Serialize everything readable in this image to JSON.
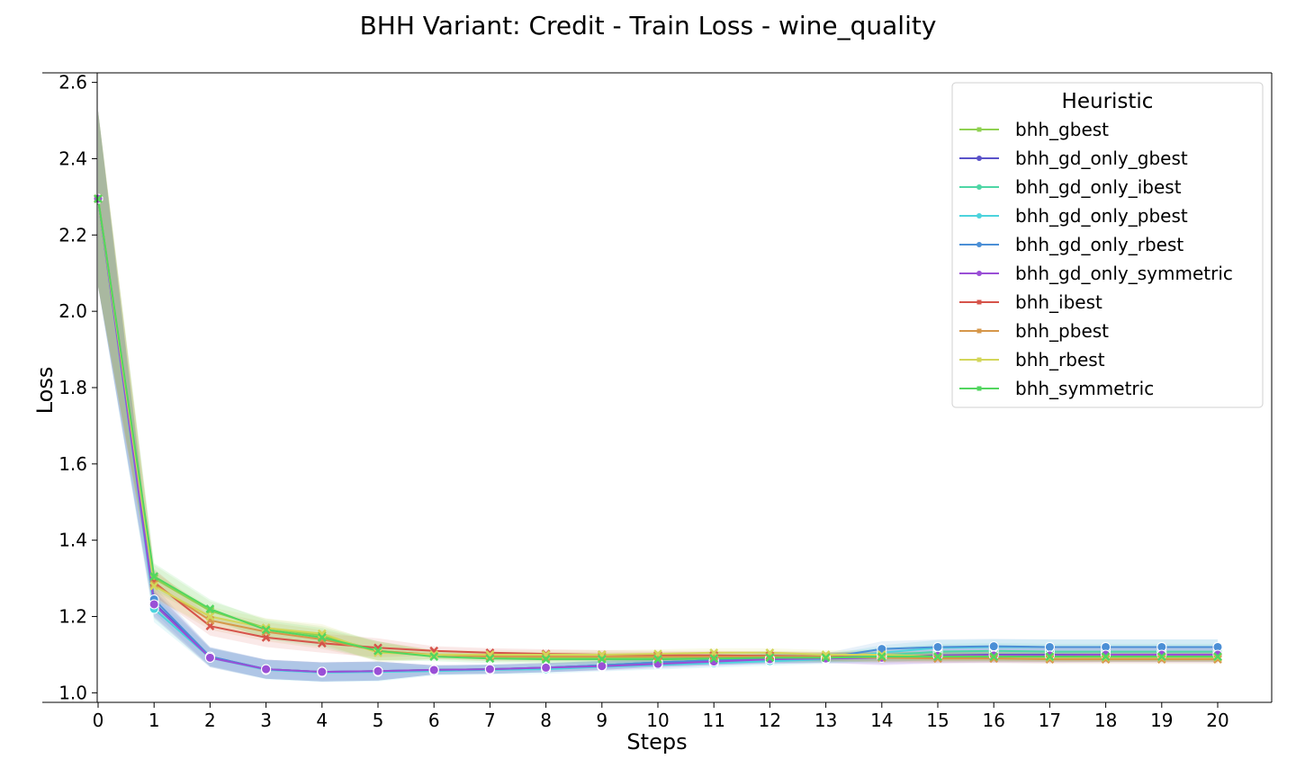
{
  "chart_data": {
    "type": "line",
    "title": "BHH Variant: Credit - Train Loss - wine_quality",
    "xlabel": "Steps",
    "ylabel": "Loss",
    "xlim": [
      0,
      21
    ],
    "ylim": [
      0.975,
      2.625
    ],
    "xticks": [
      0,
      1,
      2,
      3,
      4,
      5,
      6,
      7,
      8,
      9,
      10,
      11,
      12,
      13,
      14,
      15,
      16,
      17,
      18,
      19,
      20
    ],
    "yticks": [
      1.0,
      1.2,
      1.4,
      1.6,
      1.8,
      2.0,
      2.2,
      2.4,
      2.6
    ],
    "legend": {
      "title": "Heuristic",
      "position": "top-right"
    },
    "x": [
      0,
      1,
      2,
      3,
      4,
      5,
      6,
      7,
      8,
      9,
      10,
      11,
      12,
      13,
      14,
      15,
      16,
      17,
      18,
      19,
      20
    ],
    "series": [
      {
        "name": "bhh_gbest",
        "color": "#8fd151",
        "marker": "x",
        "values": [
          2.295,
          1.3,
          1.215,
          1.17,
          1.15,
          1.11,
          1.1,
          1.095,
          1.092,
          1.092,
          1.093,
          1.095,
          1.097,
          1.095,
          1.095,
          1.095,
          1.095,
          1.094,
          1.094,
          1.094,
          1.094
        ]
      },
      {
        "name": "bhh_gd_only_gbest",
        "color": "#5a52c9",
        "marker": "o",
        "values": [
          2.295,
          1.235,
          1.095,
          1.062,
          1.055,
          1.057,
          1.06,
          1.062,
          1.066,
          1.072,
          1.08,
          1.085,
          1.088,
          1.09,
          1.095,
          1.098,
          1.1,
          1.1,
          1.1,
          1.1,
          1.1
        ]
      },
      {
        "name": "bhh_gd_only_ibest",
        "color": "#4ed6a5",
        "marker": "o",
        "values": [
          2.295,
          1.23,
          1.093,
          1.062,
          1.055,
          1.057,
          1.06,
          1.062,
          1.066,
          1.072,
          1.08,
          1.085,
          1.09,
          1.092,
          1.098,
          1.108,
          1.11,
          1.108,
          1.108,
          1.108,
          1.108
        ]
      },
      {
        "name": "bhh_gd_only_pbest",
        "color": "#4cd3dd",
        "marker": "o",
        "values": [
          2.295,
          1.22,
          1.092,
          1.06,
          1.053,
          1.055,
          1.057,
          1.06,
          1.062,
          1.068,
          1.073,
          1.078,
          1.083,
          1.088,
          1.105,
          1.118,
          1.12,
          1.12,
          1.12,
          1.12,
          1.12
        ]
      },
      {
        "name": "bhh_gd_only_rbest",
        "color": "#4b8fd6",
        "marker": "o",
        "values": [
          2.295,
          1.245,
          1.095,
          1.062,
          1.055,
          1.057,
          1.06,
          1.062,
          1.066,
          1.072,
          1.08,
          1.085,
          1.09,
          1.092,
          1.115,
          1.12,
          1.122,
          1.12,
          1.12,
          1.12,
          1.12
        ]
      },
      {
        "name": "bhh_gd_only_symmetric",
        "color": "#9a4fd6",
        "marker": "o",
        "values": [
          2.295,
          1.232,
          1.092,
          1.062,
          1.055,
          1.057,
          1.06,
          1.062,
          1.066,
          1.07,
          1.076,
          1.082,
          1.088,
          1.09,
          1.092,
          1.097,
          1.098,
          1.098,
          1.1,
          1.1,
          1.1
        ]
      },
      {
        "name": "bhh_ibest",
        "color": "#d6534a",
        "marker": "x",
        "values": [
          2.295,
          1.29,
          1.175,
          1.145,
          1.13,
          1.118,
          1.11,
          1.105,
          1.102,
          1.1,
          1.098,
          1.098,
          1.097,
          1.095,
          1.094,
          1.094,
          1.094,
          1.093,
          1.093,
          1.093,
          1.093
        ]
      },
      {
        "name": "bhh_pbest",
        "color": "#d6974a",
        "marker": "x",
        "values": [
          2.295,
          1.285,
          1.19,
          1.16,
          1.14,
          1.11,
          1.1,
          1.095,
          1.095,
          1.095,
          1.095,
          1.095,
          1.095,
          1.095,
          1.092,
          1.09,
          1.09,
          1.088,
          1.088,
          1.088,
          1.088
        ]
      },
      {
        "name": "bhh_rbest",
        "color": "#d3d65a",
        "marker": "x",
        "values": [
          2.295,
          1.28,
          1.2,
          1.17,
          1.155,
          1.105,
          1.1,
          1.1,
          1.1,
          1.1,
          1.102,
          1.105,
          1.105,
          1.1,
          1.1,
          1.095,
          1.095,
          1.093,
          1.093,
          1.093,
          1.093
        ]
      },
      {
        "name": "bhh_symmetric",
        "color": "#52d65f",
        "marker": "x",
        "values": [
          2.295,
          1.305,
          1.22,
          1.165,
          1.145,
          1.11,
          1.095,
          1.09,
          1.088,
          1.088,
          1.088,
          1.09,
          1.092,
          1.092,
          1.095,
          1.095,
          1.095,
          1.095,
          1.095,
          1.095,
          1.095
        ]
      }
    ]
  }
}
